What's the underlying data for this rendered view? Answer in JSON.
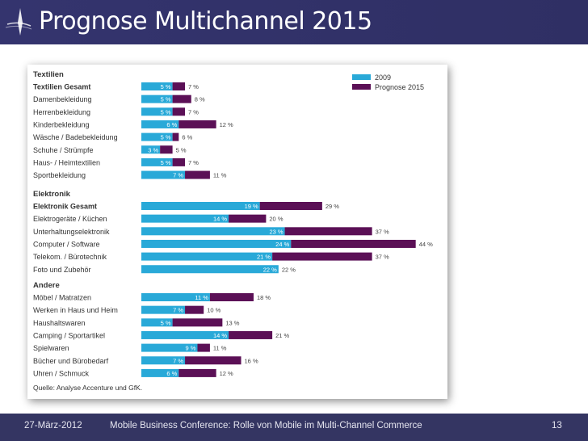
{
  "slide": {
    "title": "Prognose Multichannel 2015",
    "footer_date": "27-März-2012",
    "footer_text": "Mobile Business Conference: Rolle von Mobile im Multi-Channel Commerce",
    "page_number": "13",
    "logo_icon": "compass-logo-icon",
    "colors": {
      "header": "#34346e",
      "footer": "#343562"
    }
  },
  "chart_data": {
    "type": "bar",
    "orientation": "horizontal-stacked",
    "legend": [
      "2009",
      "Prognose 2015"
    ],
    "legend_position": "top-right",
    "colors": {
      "2009": "#29a9d8",
      "Prognose 2015": "#5b1056"
    },
    "source": "Quelle: Analyse Accenture und GfK.",
    "unit": "%",
    "groups": [
      {
        "name": "Textilien",
        "rows": [
          {
            "label": "Textilien Gesamt",
            "v2009": 5,
            "v2015": 7,
            "bold": true
          },
          {
            "label": "Damenbekleidung",
            "v2009": 5,
            "v2015": 8
          },
          {
            "label": "Herrenbekleidung",
            "v2009": 5,
            "v2015": 7
          },
          {
            "label": "Kinderbekleidung",
            "v2009": 6,
            "v2015": 12
          },
          {
            "label": "Wäsche / Badebekleidung",
            "v2009": 5,
            "v2015": 6
          },
          {
            "label": "Schuhe / Strümpfe",
            "v2009": 3,
            "v2015": 5
          },
          {
            "label": "Haus- / Heimtextilien",
            "v2009": 5,
            "v2015": 7
          },
          {
            "label": "Sportbekleidung",
            "v2009": 7,
            "v2015": 11
          }
        ]
      },
      {
        "name": "Elektronik",
        "rows": [
          {
            "label": "Elektronik Gesamt",
            "v2009": 19,
            "v2015": 29,
            "bold": true
          },
          {
            "label": "Elektrogeräte / Küchen",
            "v2009": 14,
            "v2015": 20
          },
          {
            "label": "Unterhaltungselektronik",
            "v2009": 23,
            "v2015": 37
          },
          {
            "label": "Computer / Software",
            "v2009": 24,
            "v2015": 44
          },
          {
            "label": "Telekom. / Bürotechnik",
            "v2009": 21,
            "v2015": 37
          },
          {
            "label": "Foto und Zubehör",
            "v2009": 22,
            "v2015": 22
          }
        ]
      },
      {
        "name": "Andere",
        "rows": [
          {
            "label": "Möbel / Matratzen",
            "v2009": 11,
            "v2015": 18
          },
          {
            "label": "Werken in Haus und Heim",
            "v2009": 7,
            "v2015": 10
          },
          {
            "label": "Haushaltswaren",
            "v2009": 5,
            "v2015": 13
          },
          {
            "label": "Camping / Sportartikel",
            "v2009": 14,
            "v2015": 21
          },
          {
            "label": "Spielwaren",
            "v2009": 9,
            "v2015": 11
          },
          {
            "label": "Bücher und Bürobedarf",
            "v2009": 7,
            "v2015": 16
          },
          {
            "label": "Uhren / Schmuck",
            "v2009": 6,
            "v2015": 12
          }
        ]
      }
    ]
  }
}
